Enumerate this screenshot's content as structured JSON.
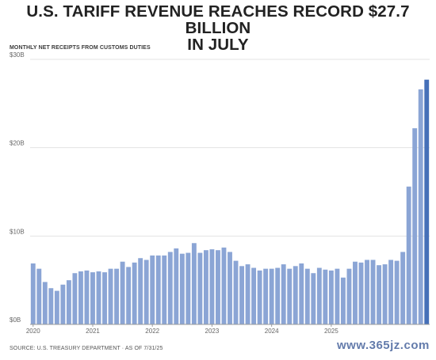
{
  "header": {
    "title_line1": "U.S. TARIFF REVENUE REACHES RECORD $27.7 BILLION",
    "title_line2": "IN JULY",
    "subtitle": "MONTHLY NET RECEIPTS FROM CUSTOMS DUTIES"
  },
  "footer": {
    "source": "SOURCE: U.S. TREASURY DEPARTMENT · AS OF 7/31/25",
    "watermark": "www.365jz.com"
  },
  "colors": {
    "bar": "#8ba5d5",
    "bar_highlight": "#4670b8",
    "grid": "#e3e3e3",
    "axis": "#9a9a9a"
  },
  "chart_data": {
    "type": "bar",
    "title": "U.S. TARIFF REVENUE REACHES RECORD $27.7 BILLION IN JULY",
    "subtitle": "MONTHLY NET RECEIPTS FROM CUSTOMS DUTIES",
    "xlabel": "",
    "ylabel": "",
    "ylim": [
      0,
      30
    ],
    "y_ticks": [
      {
        "value": 0,
        "label": "$0B"
      },
      {
        "value": 10,
        "label": "$10B"
      },
      {
        "value": 20,
        "label": "$20B"
      },
      {
        "value": 30,
        "label": "$30B"
      }
    ],
    "x_tick_labels": [
      {
        "index": 0,
        "label": "2020"
      },
      {
        "index": 10,
        "label": "2021"
      },
      {
        "index": 20,
        "label": "2022"
      },
      {
        "index": 30,
        "label": "2023"
      },
      {
        "index": 40,
        "label": "2024"
      },
      {
        "index": 50,
        "label": "2025"
      }
    ],
    "grid": true,
    "highlight_last": true,
    "categories": [
      "Jan 2020",
      "Feb 2020",
      "Mar 2020",
      "Apr 2020",
      "May 2020",
      "Jun 2020",
      "Jul 2020",
      "Aug 2020",
      "Sep 2020",
      "Oct 2020",
      "Nov 2020",
      "Dec 2020",
      "Jan 2021",
      "Feb 2021",
      "Mar 2021",
      "Apr 2021",
      "May 2021",
      "Jun 2021",
      "Jul 2021",
      "Aug 2021",
      "Sep 2021",
      "Oct 2021",
      "Nov 2021",
      "Dec 2021",
      "Jan 2022",
      "Feb 2022",
      "Mar 2022",
      "Apr 2022",
      "May 2022",
      "Jun 2022",
      "Jul 2022",
      "Aug 2022",
      "Sep 2022",
      "Oct 2022",
      "Nov 2022",
      "Dec 2022",
      "Jan 2023",
      "Feb 2023",
      "Mar 2023",
      "Apr 2023",
      "May 2023",
      "Jun 2023",
      "Jul 2023",
      "Aug 2023",
      "Sep 2023",
      "Oct 2023",
      "Nov 2023",
      "Dec 2023",
      "Jan 2024",
      "Feb 2024",
      "Mar 2024",
      "Apr 2024",
      "May 2024",
      "Jun 2024",
      "Jul 2024",
      "Aug 2024",
      "Sep 2024",
      "Oct 2024",
      "Nov 2024",
      "Dec 2024",
      "Jan 2025",
      "Feb 2025",
      "Mar 2025",
      "Apr 2025",
      "May 2025",
      "Jun 2025",
      "Jul 2025"
    ],
    "values": [
      6.9,
      6.3,
      4.8,
      4.1,
      3.8,
      4.5,
      5.0,
      5.8,
      6.0,
      6.1,
      5.9,
      6.0,
      5.9,
      6.3,
      6.3,
      7.1,
      6.5,
      7.0,
      7.5,
      7.3,
      7.8,
      7.8,
      7.8,
      8.2,
      8.6,
      8.0,
      8.1,
      9.2,
      8.1,
      8.4,
      8.5,
      8.4,
      8.7,
      8.2,
      7.2,
      6.6,
      6.8,
      6.4,
      6.1,
      6.3,
      6.3,
      6.4,
      6.8,
      6.3,
      6.6,
      6.9,
      6.3,
      5.8,
      6.4,
      6.2,
      6.1,
      6.3,
      5.3,
      6.3,
      7.1,
      7.0,
      7.3,
      7.3,
      6.7,
      6.8,
      7.3,
      7.2,
      8.2,
      15.6,
      22.2,
      26.6,
      27.7
    ]
  }
}
